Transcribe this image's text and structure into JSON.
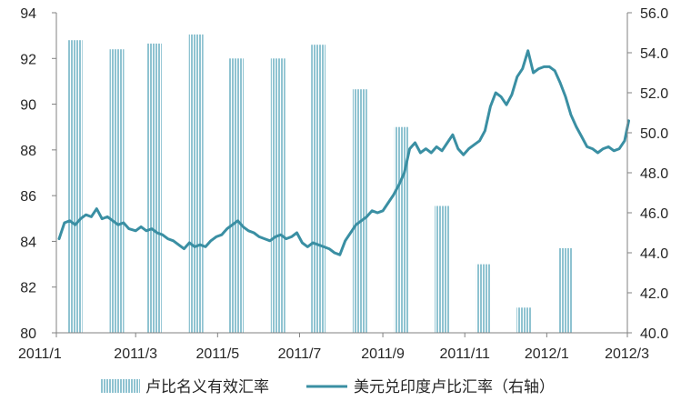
{
  "chart_data": {
    "type": "bar+line",
    "title": "",
    "xlabel": "",
    "ylabel_left": "",
    "ylabel_right": "",
    "ylim_left": [
      80,
      94
    ],
    "ylim_right": [
      40.0,
      56.0
    ],
    "left_ticks": [
      "80",
      "82",
      "84",
      "86",
      "88",
      "90",
      "92",
      "94"
    ],
    "right_ticks": [
      "40.0",
      "42.0",
      "44.0",
      "46.0",
      "48.0",
      "50.0",
      "52.0",
      "54.0",
      "56.0"
    ],
    "x_ticks": [
      "2011/1",
      "2011/3",
      "2011/5",
      "2011/7",
      "2011/9",
      "2011/11",
      "2012/1",
      "2012/3"
    ],
    "grid": false,
    "legend_position": "bottom",
    "bar_series": {
      "name": "卢比名义有效汇率",
      "color": "#8fc3d1",
      "axis": "left",
      "categories": [
        "2011/1",
        "2011/2",
        "2011/3",
        "2011/4",
        "2011/5",
        "2011/6",
        "2011/7",
        "2011/8",
        "2011/9",
        "2011/10",
        "2011/11",
        "2011/12",
        "2012/1"
      ],
      "values": [
        92.8,
        92.4,
        92.65,
        93.05,
        92.0,
        92.0,
        92.6,
        90.65,
        89.0,
        85.55,
        83.0,
        81.1,
        83.7
      ]
    },
    "line_series": {
      "name": "美元兑印度卢比汇率（右轴）",
      "color": "#3a8fa3",
      "axis": "right",
      "points": [
        [
          "2011/1/3",
          44.7
        ],
        [
          "2011/1/7",
          45.5
        ],
        [
          "2011/1/11",
          45.6
        ],
        [
          "2011/1/15",
          45.4
        ],
        [
          "2011/1/19",
          45.7
        ],
        [
          "2011/1/23",
          45.9
        ],
        [
          "2011/1/27",
          45.8
        ],
        [
          "2011/1/31",
          46.2
        ],
        [
          "2011/2/4",
          45.7
        ],
        [
          "2011/2/8",
          45.8
        ],
        [
          "2011/2/12",
          45.6
        ],
        [
          "2011/2/16",
          45.4
        ],
        [
          "2011/2/20",
          45.5
        ],
        [
          "2011/2/24",
          45.2
        ],
        [
          "2011/3/1",
          45.1
        ],
        [
          "2011/3/5",
          45.3
        ],
        [
          "2011/3/9",
          45.1
        ],
        [
          "2011/3/13",
          45.2
        ],
        [
          "2011/3/17",
          45.0
        ],
        [
          "2011/3/21",
          44.9
        ],
        [
          "2011/3/25",
          44.7
        ],
        [
          "2011/3/29",
          44.6
        ],
        [
          "2011/4/2",
          44.4
        ],
        [
          "2011/4/6",
          44.2
        ],
        [
          "2011/4/10",
          44.5
        ],
        [
          "2011/4/14",
          44.3
        ],
        [
          "2011/4/18",
          44.4
        ],
        [
          "2011/4/22",
          44.3
        ],
        [
          "2011/4/26",
          44.6
        ],
        [
          "2011/4/30",
          44.8
        ],
        [
          "2011/5/4",
          44.9
        ],
        [
          "2011/5/8",
          45.2
        ],
        [
          "2011/5/12",
          45.4
        ],
        [
          "2011/5/16",
          45.6
        ],
        [
          "2011/5/20",
          45.3
        ],
        [
          "2011/5/24",
          45.1
        ],
        [
          "2011/5/28",
          45.0
        ],
        [
          "2011/6/1",
          44.8
        ],
        [
          "2011/6/5",
          44.7
        ],
        [
          "2011/6/9",
          44.6
        ],
        [
          "2011/6/13",
          44.8
        ],
        [
          "2011/6/17",
          44.9
        ],
        [
          "2011/6/21",
          44.7
        ],
        [
          "2011/6/25",
          44.8
        ],
        [
          "2011/6/29",
          45.0
        ],
        [
          "2011/7/3",
          44.5
        ],
        [
          "2011/7/7",
          44.3
        ],
        [
          "2011/7/11",
          44.5
        ],
        [
          "2011/7/15",
          44.4
        ],
        [
          "2011/7/19",
          44.3
        ],
        [
          "2011/7/23",
          44.2
        ],
        [
          "2011/7/27",
          44.0
        ],
        [
          "2011/7/31",
          43.9
        ],
        [
          "2011/8/4",
          44.6
        ],
        [
          "2011/8/8",
          45.0
        ],
        [
          "2011/8/12",
          45.4
        ],
        [
          "2011/8/16",
          45.6
        ],
        [
          "2011/8/20",
          45.8
        ],
        [
          "2011/8/24",
          46.1
        ],
        [
          "2011/8/28",
          46.0
        ],
        [
          "2011/9/1",
          46.1
        ],
        [
          "2011/9/5",
          46.5
        ],
        [
          "2011/9/9",
          46.9
        ],
        [
          "2011/9/13",
          47.4
        ],
        [
          "2011/9/17",
          48.0
        ],
        [
          "2011/9/21",
          49.2
        ],
        [
          "2011/9/25",
          49.5
        ],
        [
          "2011/9/29",
          49.0
        ],
        [
          "2011/10/3",
          49.2
        ],
        [
          "2011/10/7",
          49.0
        ],
        [
          "2011/10/11",
          49.3
        ],
        [
          "2011/10/15",
          49.1
        ],
        [
          "2011/10/19",
          49.5
        ],
        [
          "2011/10/23",
          49.9
        ],
        [
          "2011/10/27",
          49.2
        ],
        [
          "2011/10/31",
          48.9
        ],
        [
          "2011/11/4",
          49.2
        ],
        [
          "2011/11/8",
          49.4
        ],
        [
          "2011/11/12",
          49.6
        ],
        [
          "2011/11/16",
          50.1
        ],
        [
          "2011/11/20",
          51.3
        ],
        [
          "2011/11/24",
          52.0
        ],
        [
          "2011/11/28",
          51.8
        ],
        [
          "2011/12/2",
          51.4
        ],
        [
          "2011/12/6",
          51.9
        ],
        [
          "2011/12/10",
          52.8
        ],
        [
          "2011/12/14",
          53.2
        ],
        [
          "2011/12/18",
          54.1
        ],
        [
          "2011/12/22",
          53.0
        ],
        [
          "2011/12/26",
          53.2
        ],
        [
          "2011/12/30",
          53.3
        ],
        [
          "2012/1/3",
          53.3
        ],
        [
          "2012/1/7",
          53.1
        ],
        [
          "2012/1/11",
          52.5
        ],
        [
          "2012/1/15",
          51.8
        ],
        [
          "2012/1/19",
          50.9
        ],
        [
          "2012/1/23",
          50.3
        ],
        [
          "2012/1/27",
          49.8
        ],
        [
          "2012/1/31",
          49.3
        ],
        [
          "2012/2/4",
          49.2
        ],
        [
          "2012/2/8",
          49.0
        ],
        [
          "2012/2/12",
          49.2
        ],
        [
          "2012/2/16",
          49.3
        ],
        [
          "2012/2/20",
          49.1
        ],
        [
          "2012/2/24",
          49.2
        ],
        [
          "2012/2/28",
          49.6
        ],
        [
          "2012/3/2",
          50.6
        ]
      ]
    },
    "legend": [
      {
        "label": "卢比名义有效汇率",
        "kind": "bar"
      },
      {
        "label": "美元兑印度卢比汇率（右轴）",
        "kind": "line"
      }
    ]
  }
}
